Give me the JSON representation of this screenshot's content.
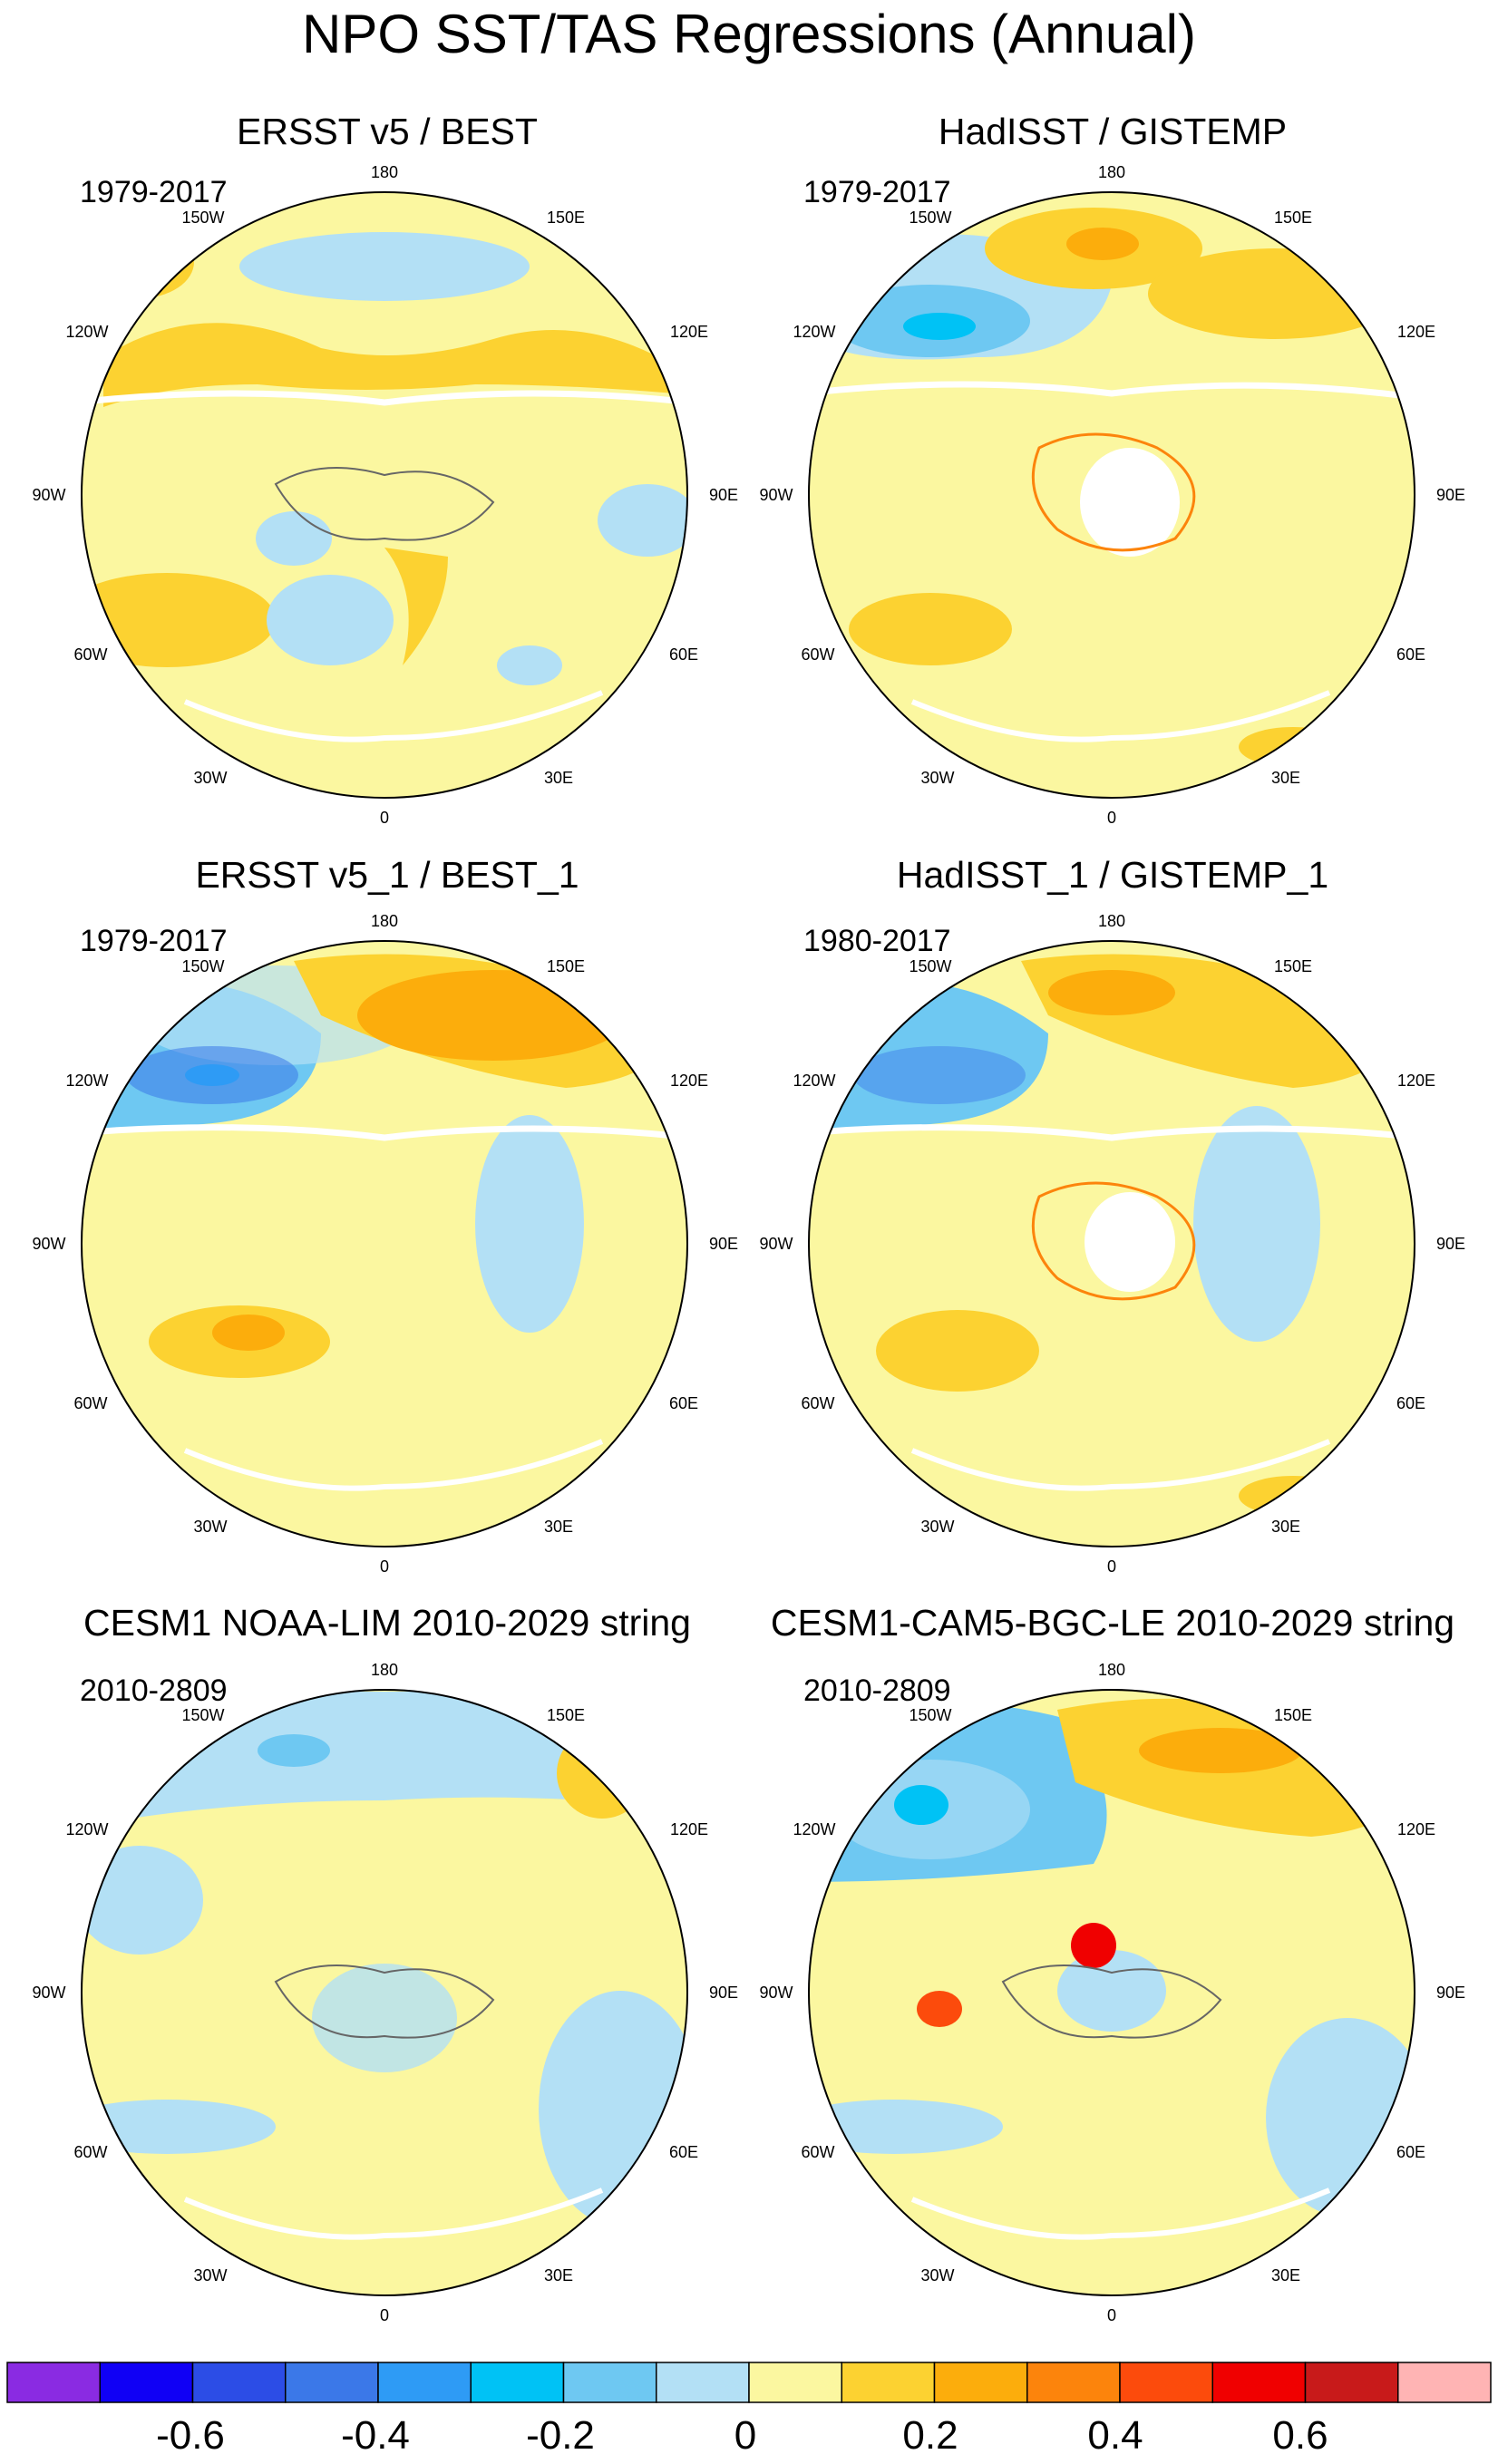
{
  "title": "NPO SST/TAS Regressions (Annual)",
  "panels": [
    {
      "title": "ERSST v5 / BEST",
      "period": "1979-2017"
    },
    {
      "title": "HadISST / GISTEMP",
      "period": "1979-2017"
    },
    {
      "title": "ERSST v5_1 / BEST_1",
      "period": "1979-2017"
    },
    {
      "title": "HadISST_1 / GISTEMP_1",
      "period": "1980-2017"
    },
    {
      "title": "CESM1 NOAA-LIM 2010-2029 string",
      "period": "2010-2809"
    },
    {
      "title": "CESM1-CAM5-BGC-LE 2010-2029 string",
      "period": "2010-2809"
    }
  ],
  "longitude_labels": {
    "top": "180",
    "upper_left": "150W",
    "upper_right": "150E",
    "mid_upper_left": "120W",
    "mid_upper_right": "120E",
    "left": "90W",
    "right": "90E",
    "mid_lower_left": "60W",
    "mid_lower_right": "60E",
    "lower_left": "30W",
    "lower_right": "30E",
    "bottom": "0"
  },
  "colorbar": {
    "colors": [
      "#8a2be2",
      "#1000f5",
      "#2c4de6",
      "#3b78e8",
      "#2e9bf5",
      "#00c2f5",
      "#6ec8f2",
      "#b3e0f5",
      "#fbf7a0",
      "#fcd231",
      "#fcad0c",
      "#fc840c",
      "#fc4b0c",
      "#f00000",
      "#c81a1a",
      "#ffb4b4"
    ],
    "labels": [
      "-0.6",
      "-0.4",
      "-0.2",
      "0",
      "0.2",
      "0.4",
      "0.6"
    ]
  },
  "palette": {
    "light_blue": "#b3e0f5",
    "blue": "#6ec8f2",
    "deep_blue": "#00c2f5",
    "pale_yellow": "#fbf7a0",
    "yellow_orange": "#fcd231",
    "orange": "#fcad0c",
    "red": "#f00000"
  }
}
